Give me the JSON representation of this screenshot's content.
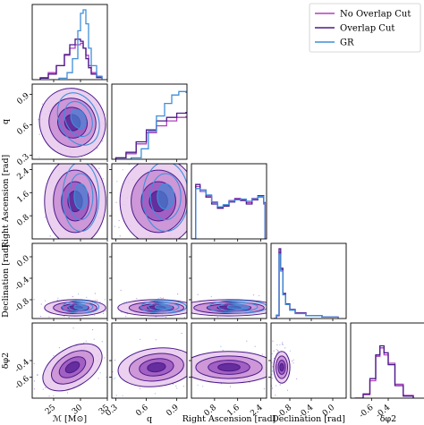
{
  "chart_data": {
    "type": "corner",
    "parameters": [
      {
        "key": "mc",
        "label": "ℳ [M⊙]",
        "range": [
          21,
          35
        ],
        "ticks": [
          "25",
          "30",
          "35"
        ]
      },
      {
        "key": "q",
        "label": "q",
        "range": [
          0.26,
          1.0
        ],
        "ticks": [
          "0.3",
          "0.6",
          "0.9"
        ]
      },
      {
        "key": "ra",
        "label": "Right Ascension [rad]",
        "range": [
          0.0,
          2.6
        ],
        "ticks": [
          "0.8",
          "1.6",
          "2.4"
        ]
      },
      {
        "key": "dec",
        "label": "Declination [rad]",
        "range": [
          -1.15,
          0.25
        ],
        "ticks": [
          "-0.8",
          "-0.4",
          "0.0"
        ]
      },
      {
        "key": "dphi",
        "label": "δφ2",
        "range": [
          -0.85,
          0.05
        ],
        "ticks": [
          "-0.6",
          "-0.4"
        ]
      }
    ],
    "series": [
      {
        "name": "No Overlap Cut",
        "color": "#b23fbf"
      },
      {
        "name": "Overlap Cut",
        "color": "#4b1a8a"
      },
      {
        "name": "GR",
        "color": "#3f8fd9"
      }
    ],
    "marginals": {
      "mc": [
        {
          "series": "No Overlap Cut",
          "x": [
            22.5,
            24,
            25.5,
            27,
            28,
            29,
            30,
            30.5,
            31,
            31.5,
            32,
            33,
            34
          ],
          "y": [
            0.03,
            0.1,
            0.2,
            0.35,
            0.45,
            0.5,
            0.52,
            0.45,
            0.35,
            0.2,
            0.1,
            0.04,
            0.02
          ]
        },
        {
          "series": "Overlap Cut",
          "x": [
            22.5,
            24,
            25.5,
            27,
            28,
            29,
            30,
            30.5,
            31,
            31.5,
            32,
            33,
            34
          ],
          "y": [
            0.02,
            0.08,
            0.2,
            0.36,
            0.5,
            0.58,
            0.55,
            0.45,
            0.3,
            0.17,
            0.08,
            0.03,
            0.01
          ]
        },
        {
          "series": "GR",
          "x": [
            26,
            27.5,
            28.5,
            29.5,
            30,
            30.5,
            31,
            31.5,
            32,
            33,
            34
          ],
          "y": [
            0.02,
            0.1,
            0.3,
            0.7,
            0.95,
            1.0,
            0.8,
            0.45,
            0.2,
            0.05,
            0.01
          ]
        }
      ],
      "q": [
        {
          "series": "No Overlap Cut",
          "x": [
            0.3,
            0.4,
            0.5,
            0.6,
            0.7,
            0.8,
            0.9,
            0.99
          ],
          "y": [
            0.02,
            0.08,
            0.22,
            0.38,
            0.48,
            0.55,
            0.6,
            0.62
          ]
        },
        {
          "series": "Overlap Cut",
          "x": [
            0.3,
            0.4,
            0.5,
            0.6,
            0.7,
            0.8,
            0.9,
            0.99
          ],
          "y": [
            0.02,
            0.1,
            0.25,
            0.42,
            0.55,
            0.6,
            0.66,
            0.68
          ]
        },
        {
          "series": "GR",
          "x": [
            0.3,
            0.45,
            0.55,
            0.62,
            0.7,
            0.78,
            0.85,
            0.92,
            0.99
          ],
          "y": [
            0.0,
            0.02,
            0.15,
            0.4,
            0.62,
            0.8,
            0.92,
            0.97,
            0.95
          ]
        }
      ],
      "ra": [
        {
          "series": "No Overlap Cut",
          "x": [
            0.05,
            0.15,
            0.3,
            0.5,
            0.7,
            0.9,
            1.1,
            1.3,
            1.5,
            1.7,
            1.9,
            2.1,
            2.3,
            2.5,
            2.55
          ],
          "y": [
            0.0,
            0.75,
            0.68,
            0.62,
            0.52,
            0.45,
            0.48,
            0.55,
            0.58,
            0.56,
            0.52,
            0.58,
            0.6,
            0.5,
            0.0
          ]
        },
        {
          "series": "Overlap Cut",
          "x": [
            0.05,
            0.15,
            0.3,
            0.5,
            0.7,
            0.9,
            1.1,
            1.3,
            1.5,
            1.7,
            1.9,
            2.1,
            2.3,
            2.5,
            2.55
          ],
          "y": [
            0.0,
            0.78,
            0.7,
            0.6,
            0.5,
            0.44,
            0.47,
            0.53,
            0.57,
            0.55,
            0.5,
            0.56,
            0.62,
            0.52,
            0.0
          ]
        },
        {
          "series": "GR",
          "x": [
            0.05,
            0.15,
            0.3,
            0.5,
            0.7,
            0.9,
            1.1,
            1.3,
            1.5,
            1.7,
            1.9,
            2.1,
            2.3,
            2.5,
            2.55
          ],
          "y": [
            0.0,
            0.72,
            0.7,
            0.63,
            0.53,
            0.46,
            0.49,
            0.54,
            0.56,
            0.57,
            0.54,
            0.57,
            0.61,
            0.51,
            0.0
          ]
        }
      ],
      "dec": [
        {
          "series": "No Overlap Cut",
          "x": [
            -1.1,
            -1.05,
            -1.0,
            -0.97,
            -0.93,
            -0.88,
            -0.8,
            -0.7,
            -0.5,
            -0.2,
            0.1
          ],
          "y": [
            0.0,
            0.05,
            0.95,
            0.7,
            0.35,
            0.2,
            0.12,
            0.08,
            0.04,
            0.02,
            0.01
          ]
        },
        {
          "series": "Overlap Cut",
          "x": [
            -1.1,
            -1.05,
            -1.0,
            -0.97,
            -0.93,
            -0.88,
            -0.8,
            -0.7,
            -0.5,
            -0.2,
            0.1
          ],
          "y": [
            0.0,
            0.04,
            1.0,
            0.72,
            0.36,
            0.21,
            0.13,
            0.08,
            0.04,
            0.02,
            0.01
          ]
        },
        {
          "series": "GR",
          "x": [
            -1.1,
            -1.05,
            -1.0,
            -0.97,
            -0.93,
            -0.88,
            -0.8,
            -0.7,
            -0.5,
            -0.2,
            0.1
          ],
          "y": [
            0.0,
            0.05,
            0.92,
            0.68,
            0.34,
            0.2,
            0.12,
            0.07,
            0.04,
            0.02,
            0.01
          ]
        }
      ],
      "dphi": [
        {
          "series": "No Overlap Cut",
          "x": [
            -0.8,
            -0.7,
            -0.62,
            -0.55,
            -0.5,
            -0.45,
            -0.4,
            -0.32,
            -0.22,
            -0.1
          ],
          "y": [
            0.0,
            0.05,
            0.25,
            0.6,
            0.72,
            0.62,
            0.5,
            0.2,
            0.04,
            0.0
          ]
        },
        {
          "series": "Overlap Cut",
          "x": [
            -0.8,
            -0.7,
            -0.62,
            -0.55,
            -0.5,
            -0.45,
            -0.4,
            -0.32,
            -0.22,
            -0.1
          ],
          "y": [
            0.0,
            0.06,
            0.28,
            0.62,
            0.75,
            0.65,
            0.48,
            0.18,
            0.03,
            0.0
          ]
        }
      ]
    },
    "joint": [
      {
        "row": "q",
        "col": "mc",
        "center": [
          28.5,
          0.62
        ],
        "sigma": [
          3.2,
          0.18
        ],
        "rho": 0.35
      },
      {
        "row": "ra",
        "col": "mc",
        "center": [
          29.0,
          1.3
        ],
        "sigma": [
          3.0,
          0.8
        ],
        "rho": 0.0
      },
      {
        "row": "ra",
        "col": "q",
        "center": [
          0.72,
          1.3
        ],
        "sigma": [
          0.2,
          0.8
        ],
        "rho": 0.0
      },
      {
        "row": "dec",
        "col": "mc",
        "center": [
          29.0,
          -0.95
        ],
        "sigma": [
          3.0,
          0.08
        ],
        "rho": 0.0
      },
      {
        "row": "dec",
        "col": "q",
        "center": [
          0.7,
          -0.95
        ],
        "sigma": [
          0.2,
          0.08
        ],
        "rho": 0.0
      },
      {
        "row": "dec",
        "col": "ra",
        "center": [
          1.3,
          -0.95
        ],
        "sigma": [
          0.9,
          0.08
        ],
        "rho": 0.0
      },
      {
        "row": "dphi",
        "col": "mc",
        "center": [
          28.5,
          -0.48
        ],
        "sigma": [
          3.2,
          0.12
        ],
        "rho": 0.85
      },
      {
        "row": "dphi",
        "col": "q",
        "center": [
          0.7,
          -0.48
        ],
        "sigma": [
          0.2,
          0.12
        ],
        "rho": 0.2
      },
      {
        "row": "dphi",
        "col": "ra",
        "center": [
          1.3,
          -0.48
        ],
        "sigma": [
          0.85,
          0.1
        ],
        "rho": 0.0
      },
      {
        "row": "dphi",
        "col": "dec",
        "center": [
          -0.95,
          -0.48
        ],
        "sigma": [
          0.08,
          0.1
        ],
        "rho": 0.0
      }
    ],
    "legend": "top-right",
    "grid": false
  }
}
